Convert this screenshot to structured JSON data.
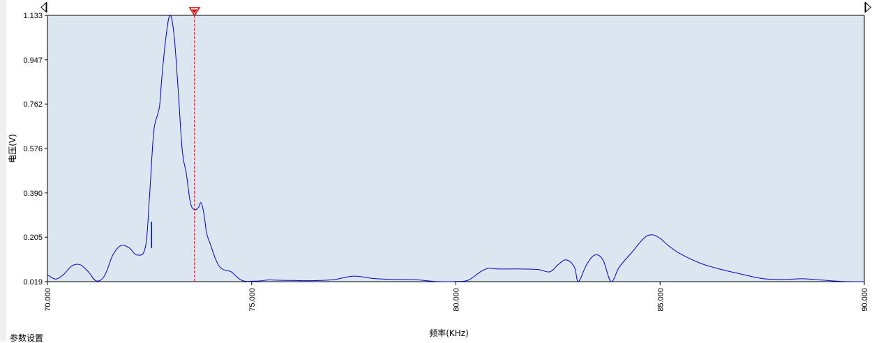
{
  "footer": {
    "label": "参数设置"
  },
  "colors": {
    "plot_background": "#dce6f1",
    "line": "#0000c8",
    "cursor": "#e00000",
    "axis": "#000000"
  },
  "chart_data": {
    "type": "line",
    "xlabel": "频率(KHz)",
    "ylabel": "电压(V)",
    "xlim": [
      70.0,
      90.0
    ],
    "ylim": [
      0.019,
      1.133
    ],
    "x_ticks": [
      "70.000",
      "75.000",
      "80.000",
      "85.000",
      "90.000"
    ],
    "y_ticks": [
      "1.133",
      "0.947",
      "0.762",
      "0.576",
      "0.390",
      "0.205",
      "0.019"
    ],
    "grid": false,
    "cursor_marker": {
      "x": 73.6
    },
    "series": [
      {
        "x": [
          70.0,
          70.2,
          70.4,
          70.6,
          70.8,
          71.0,
          71.2,
          71.4,
          71.6,
          71.8,
          72.0,
          72.2,
          72.4,
          72.5,
          72.6,
          72.7,
          72.75,
          72.8,
          72.9,
          73.0,
          73.1,
          73.2,
          73.3,
          73.4,
          73.5,
          73.6,
          73.7,
          73.75,
          73.8,
          73.85,
          73.9,
          74.0,
          74.1,
          74.2,
          74.3,
          74.4,
          74.5,
          74.6,
          74.7,
          74.8,
          74.9,
          75.0,
          75.2,
          75.4,
          75.6,
          76.0,
          76.5,
          77.0,
          77.5,
          78.0,
          78.5,
          79.0,
          79.5,
          80.0,
          80.3,
          80.6,
          80.8,
          81.0,
          81.5,
          82.0,
          82.3,
          82.5,
          82.7,
          82.9,
          83.0,
          83.2,
          83.4,
          83.6,
          83.8,
          84.0,
          84.3,
          84.6,
          84.8,
          85.0,
          85.2,
          85.5,
          86.0,
          86.5,
          87.0,
          87.5,
          88.0,
          88.5,
          89.0,
          89.5,
          90.0
        ],
        "y": [
          0.048,
          0.03,
          0.05,
          0.085,
          0.09,
          0.06,
          0.022,
          0.045,
          0.13,
          0.17,
          0.16,
          0.13,
          0.165,
          0.38,
          0.64,
          0.72,
          0.76,
          0.87,
          1.04,
          1.133,
          1.05,
          0.82,
          0.57,
          0.47,
          0.35,
          0.32,
          0.33,
          0.35,
          0.33,
          0.28,
          0.22,
          0.17,
          0.12,
          0.085,
          0.07,
          0.065,
          0.06,
          0.045,
          0.03,
          0.022,
          0.02,
          0.021,
          0.022,
          0.026,
          0.025,
          0.024,
          0.023,
          0.027,
          0.042,
          0.032,
          0.028,
          0.027,
          0.02,
          0.02,
          0.025,
          0.06,
          0.075,
          0.072,
          0.072,
          0.07,
          0.06,
          0.09,
          0.11,
          0.08,
          0.02,
          0.09,
          0.13,
          0.11,
          0.02,
          0.08,
          0.14,
          0.2,
          0.215,
          0.2,
          0.17,
          0.135,
          0.095,
          0.07,
          0.05,
          0.032,
          0.028,
          0.031,
          0.025,
          0.02,
          0.019
        ]
      }
    ],
    "spikes": [
      {
        "x": 72.55,
        "y_from": 0.16,
        "y_to": 0.27
      }
    ]
  }
}
